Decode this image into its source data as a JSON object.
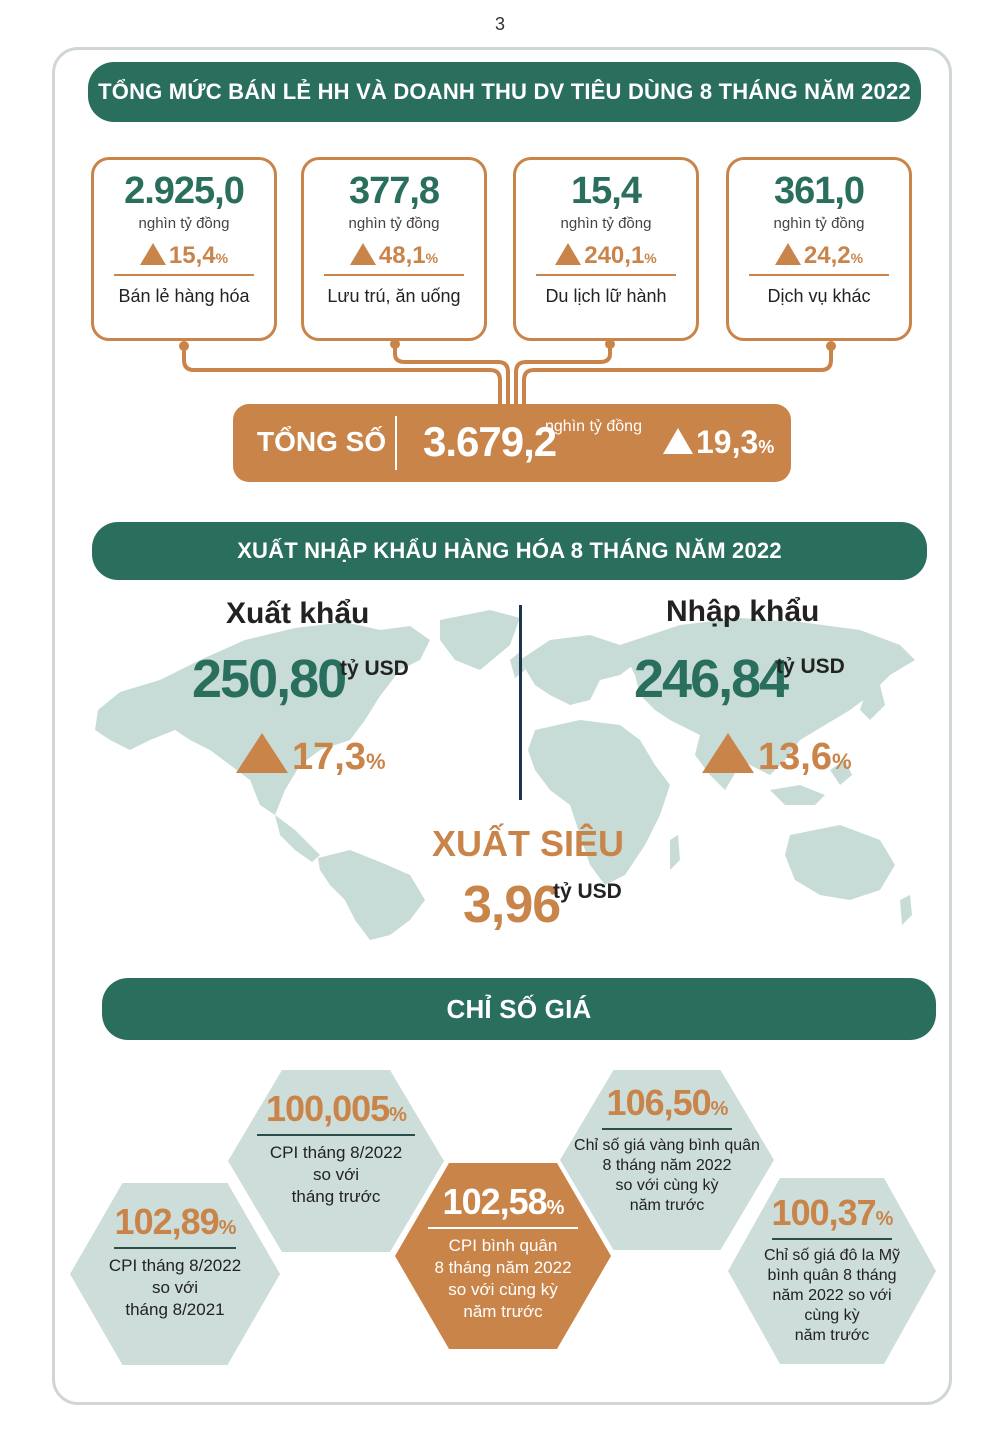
{
  "page_number": "3",
  "retail": {
    "title": "TỔNG MỨC BÁN LẺ HH VÀ DOANH THU DV TIÊU DÙNG 8 THÁNG NĂM 2022",
    "cards": [
      {
        "value": "2.925,0",
        "unit": "nghìn tỷ đồng",
        "growth": "15,4",
        "pct": "%",
        "label": "Bán lẻ hàng hóa"
      },
      {
        "value": "377,8",
        "unit": "nghìn tỷ đồng",
        "growth": "48,1",
        "pct": "%",
        "label": "Lưu trú, ăn uống"
      },
      {
        "value": "15,4",
        "unit": "nghìn tỷ đồng",
        "growth": "240,1",
        "pct": "%",
        "label": "Du lịch lữ hành"
      },
      {
        "value": "361,0",
        "unit": "nghìn tỷ đồng",
        "growth": "24,2",
        "pct": "%",
        "label": "Dịch vụ khác"
      }
    ],
    "total": {
      "label": "TỔNG SỐ",
      "value": "3.679,2",
      "unit": "nghìn tỷ đồng",
      "growth": "19,3",
      "pct": "%"
    },
    "colors": {
      "green": "#2a6e5e",
      "orange": "#c9844a"
    }
  },
  "trade": {
    "title": "XUẤT NHẬP KHẨU HÀNG HÓA 8 THÁNG NĂM 2022",
    "export": {
      "label": "Xuất khẩu",
      "value": "250,80",
      "unit": "tỷ USD",
      "growth": "17,3",
      "pct": "%"
    },
    "import": {
      "label": "Nhập khẩu",
      "value": "246,84",
      "unit": "tỷ USD",
      "growth": "13,6",
      "pct": "%"
    },
    "surplus": {
      "label": "XUẤT SIÊU",
      "value": "3,96",
      "unit": "tỷ USD"
    }
  },
  "prices": {
    "title": "CHỈ SỐ GIÁ",
    "items": [
      {
        "value": "102,89",
        "pct": "%",
        "desc": [
          "CPI tháng 8/2022",
          "so với",
          "tháng 8/2021"
        ]
      },
      {
        "value": "100,005",
        "pct": "%",
        "desc": [
          "CPI tháng 8/2022",
          "so với",
          "tháng trước"
        ]
      },
      {
        "value": "102,58",
        "pct": "%",
        "desc": [
          "CPI bình quân",
          "8 tháng năm 2022",
          "so với cùng kỳ",
          "năm trước"
        ]
      },
      {
        "value": "106,50",
        "pct": "%",
        "desc": [
          "Chỉ số giá vàng bình quân",
          "8 tháng năm 2022",
          "so với cùng kỳ",
          "năm trước"
        ]
      },
      {
        "value": "100,37",
        "pct": "%",
        "desc": [
          "Chỉ số giá đô la Mỹ",
          "bình quân 8 tháng",
          "năm 2022 so với",
          "cùng kỳ",
          "năm trước"
        ]
      }
    ]
  }
}
